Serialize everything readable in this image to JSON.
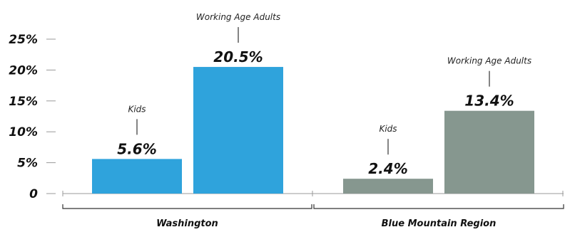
{
  "chart_data": {
    "type": "bar",
    "ylim": [
      0,
      25
    ],
    "yticks": [
      {
        "value": 0,
        "label": "0"
      },
      {
        "value": 5,
        "label": "5%"
      },
      {
        "value": 10,
        "label": "10%"
      },
      {
        "value": 15,
        "label": "15%"
      },
      {
        "value": 20,
        "label": "20%"
      },
      {
        "value": 25,
        "label": "25%"
      }
    ],
    "groups": [
      {
        "name": "Washington",
        "color": "#2fa3dc",
        "bars": [
          {
            "category": "Kids",
            "value": 5.6,
            "value_label": "5.6%"
          },
          {
            "category": "Working Age Adults",
            "value": 20.5,
            "value_label": "20.5%"
          }
        ]
      },
      {
        "name": "Blue Mountain Region",
        "color": "#86978f",
        "bars": [
          {
            "category": "Kids",
            "value": 2.4,
            "value_label": "2.4%"
          },
          {
            "category": "Working Age Adults",
            "value": 13.4,
            "value_label": "13.4%"
          }
        ]
      }
    ],
    "grid": false,
    "legend": "none"
  }
}
